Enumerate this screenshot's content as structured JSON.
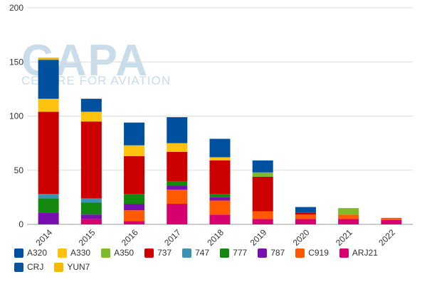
{
  "watermark": {
    "main": "CAPA",
    "sub": "CENTRE FOR AVIATION"
  },
  "chart_data": {
    "type": "bar",
    "stacked": true,
    "categories": [
      "2014",
      "2015",
      "2016",
      "2017",
      "2018",
      "2019",
      "2020",
      "2021",
      "2022"
    ],
    "ylim": [
      0,
      200
    ],
    "yticks": [
      0,
      50,
      100,
      150,
      200
    ],
    "grid": true,
    "legend_position": "bottom",
    "series": [
      {
        "name": "ARJ21",
        "color": "#d6006f",
        "values": [
          0,
          5,
          3,
          19,
          9,
          5,
          5,
          5,
          4
        ]
      },
      {
        "name": "C919",
        "color": "#ff5a00",
        "values": [
          0,
          0,
          10,
          13,
          13,
          7,
          4,
          4,
          2
        ]
      },
      {
        "name": "787",
        "color": "#7a0fb0",
        "values": [
          11,
          4,
          6,
          4,
          3,
          0,
          0,
          0,
          0
        ]
      },
      {
        "name": "777",
        "color": "#14890f",
        "values": [
          13,
          11,
          9,
          4,
          3,
          0,
          0,
          0,
          0
        ]
      },
      {
        "name": "747",
        "color": "#3b92b5",
        "values": [
          4,
          4,
          0,
          0,
          0,
          0,
          0,
          0,
          0
        ]
      },
      {
        "name": "737",
        "color": "#cc0000",
        "values": [
          76,
          71,
          35,
          27,
          31,
          32,
          2,
          0,
          0
        ]
      },
      {
        "name": "A350",
        "color": "#7fba2a",
        "values": [
          0,
          0,
          0,
          0,
          0,
          4,
          0,
          6,
          0
        ]
      },
      {
        "name": "A330",
        "color": "#ffc20e",
        "values": [
          12,
          9,
          10,
          8,
          3,
          0,
          0,
          0,
          0
        ]
      },
      {
        "name": "A320",
        "color": "#0050a0",
        "values": [
          36,
          12,
          21,
          24,
          17,
          11,
          5,
          0,
          0
        ]
      },
      {
        "name": "YUN7",
        "color": "#f6b800",
        "values": [
          2,
          0,
          0,
          0,
          0,
          0,
          0,
          0,
          0
        ]
      },
      {
        "name": "CRJ",
        "color": "#0a52a0",
        "values": [
          0,
          0,
          0,
          0,
          0,
          0,
          0,
          0,
          0
        ]
      }
    ],
    "legend_order": [
      "A320",
      "A330",
      "A350",
      "737",
      "747",
      "777",
      "787",
      "C919",
      "ARJ21",
      "CRJ",
      "YUN7"
    ]
  }
}
